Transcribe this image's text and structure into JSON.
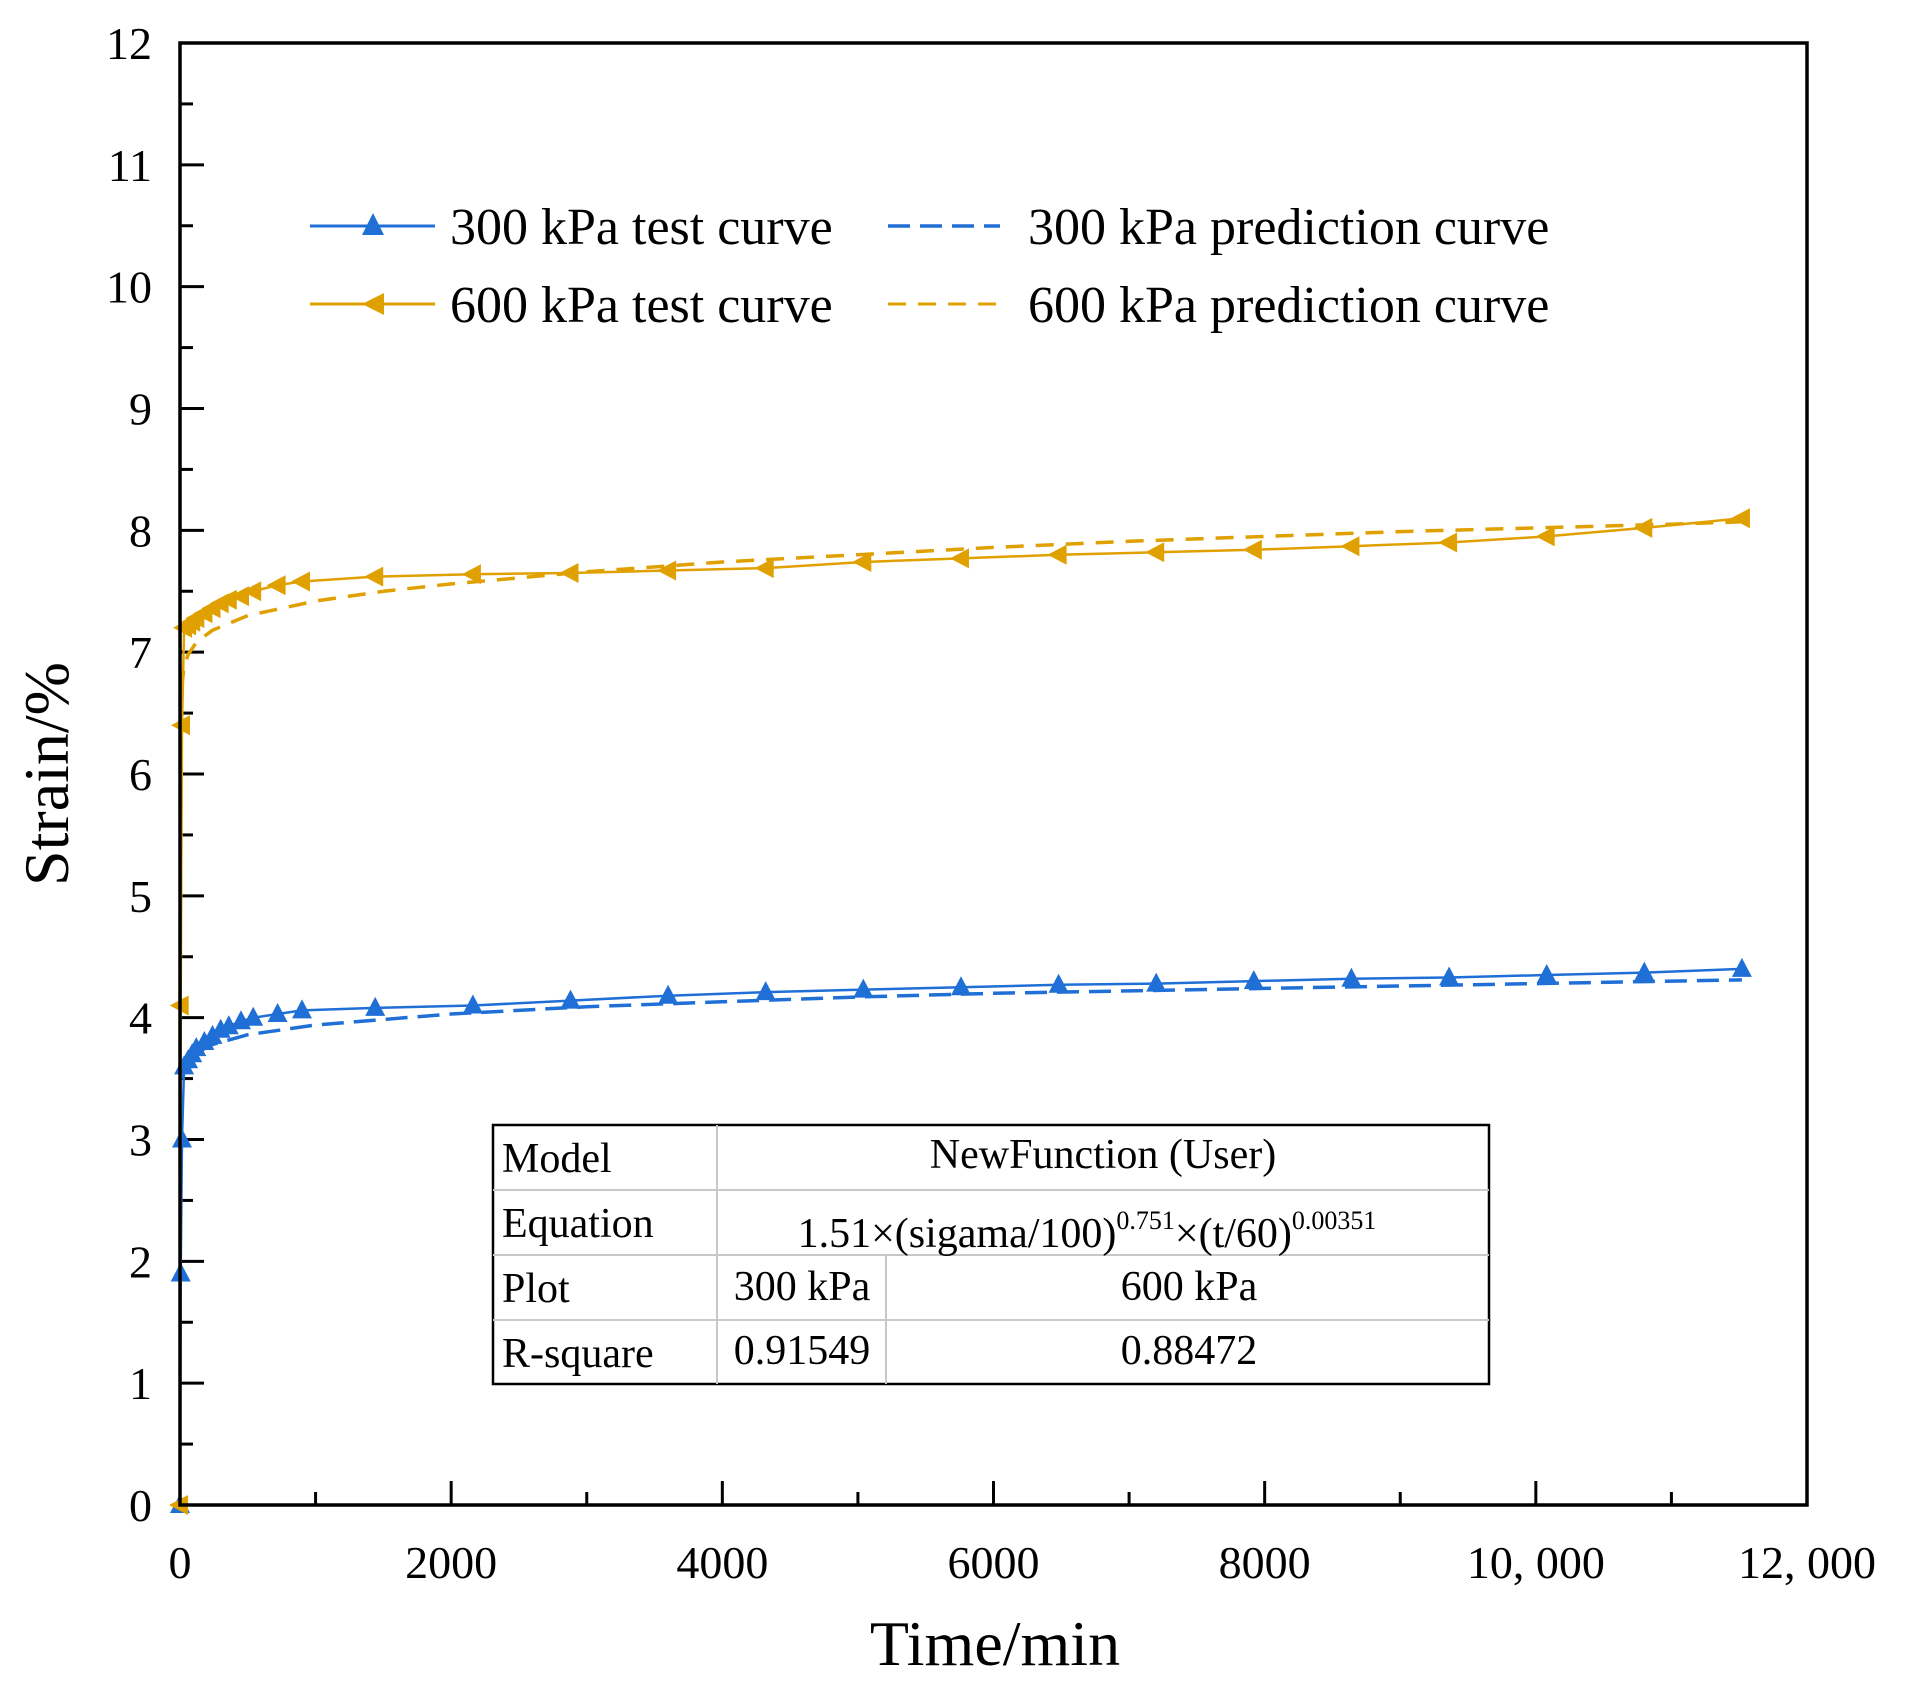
{
  "chart_data": {
    "type": "line",
    "xlabel": "Time/min",
    "ylabel": "Strain/%",
    "xlim": [
      0,
      12000
    ],
    "ylim": [
      0,
      12
    ],
    "x_ticks": [
      0,
      2000,
      4000,
      6000,
      8000,
      10000,
      12000
    ],
    "x_tick_labels": [
      "0",
      "2000",
      "4000",
      "6000",
      "8000",
      "10, 000",
      "12, 000"
    ],
    "y_ticks": [
      0,
      1,
      2,
      3,
      4,
      5,
      6,
      7,
      8,
      9,
      10,
      11,
      12
    ],
    "y_tick_labels": [
      "0",
      "1",
      "2",
      "3",
      "4",
      "5",
      "6",
      "7",
      "8",
      "9",
      "10",
      "11",
      "12"
    ],
    "grid": false,
    "legend_position": "top",
    "series": [
      {
        "name": "300 kPa test curve",
        "style": "solid",
        "marker": "triangle-up",
        "color": "#1f6fd6",
        "x": [
          0,
          5,
          15,
          30,
          60,
          90,
          120,
          180,
          240,
          300,
          360,
          450,
          540,
          720,
          900,
          1440,
          2160,
          2880,
          3600,
          4320,
          5040,
          5760,
          6480,
          7200,
          7920,
          8640,
          9360,
          10080,
          10800,
          11520
        ],
        "y": [
          0,
          1.9,
          3.0,
          3.6,
          3.65,
          3.7,
          3.75,
          3.8,
          3.85,
          3.9,
          3.93,
          3.97,
          4.0,
          4.03,
          4.06,
          4.08,
          4.1,
          4.14,
          4.18,
          4.21,
          4.23,
          4.25,
          4.27,
          4.28,
          4.3,
          4.32,
          4.33,
          4.35,
          4.37,
          4.4
        ]
      },
      {
        "name": "300 kPa prediction curve",
        "style": "dashed",
        "color": "#1f6fd6",
        "x": [
          10,
          30,
          60,
          120,
          240,
          500,
          1000,
          2000,
          3000,
          4000,
          5000,
          6000,
          7000,
          8000,
          9000,
          10000,
          11000,
          11520
        ],
        "y": [
          3.5,
          3.58,
          3.64,
          3.71,
          3.78,
          3.86,
          3.94,
          4.03,
          4.09,
          4.13,
          4.17,
          4.2,
          4.22,
          4.24,
          4.26,
          4.28,
          4.3,
          4.31
        ]
      },
      {
        "name": "600 kPa test curve",
        "style": "solid",
        "marker": "triangle-left",
        "color": "#e0a000",
        "x": [
          0,
          5,
          15,
          30,
          60,
          90,
          120,
          180,
          240,
          300,
          360,
          450,
          540,
          720,
          900,
          1440,
          2160,
          2880,
          3600,
          4320,
          5040,
          5760,
          6480,
          7200,
          7920,
          8640,
          9360,
          10080,
          10800,
          11520
        ],
        "y": [
          0,
          4.1,
          6.4,
          7.2,
          7.22,
          7.25,
          7.28,
          7.32,
          7.36,
          7.4,
          7.43,
          7.46,
          7.5,
          7.55,
          7.58,
          7.62,
          7.64,
          7.65,
          7.67,
          7.69,
          7.74,
          7.77,
          7.8,
          7.82,
          7.84,
          7.87,
          7.9,
          7.95,
          8.02,
          8.1
        ]
      },
      {
        "name": "600 kPa prediction curve",
        "style": "dashed",
        "color": "#e0a000",
        "x": [
          10,
          30,
          60,
          120,
          240,
          500,
          1000,
          1500,
          2000,
          3000,
          4000,
          5000,
          6000,
          7000,
          8000,
          9000,
          10000,
          11000,
          11520
        ],
        "y": [
          6.7,
          6.88,
          6.98,
          7.08,
          7.18,
          7.3,
          7.42,
          7.5,
          7.56,
          7.66,
          7.74,
          7.8,
          7.86,
          7.91,
          7.95,
          7.99,
          8.02,
          8.05,
          8.07
        ]
      }
    ]
  },
  "fit_table": {
    "row1_label": "Model",
    "row1_value": "NewFunction (User)",
    "row2_label": "Equation",
    "eq_part1": "1.51×(sigama/100)",
    "eq_exp1": "0.751",
    "eq_part2": "×(t/60)",
    "eq_exp2": "0.00351",
    "row3_label": "Plot",
    "row3_col1": "300 kPa",
    "row3_col2": "600 kPa",
    "row4_label": "R-square",
    "row4_col1": "0.91549",
    "row4_col2": "0.88472"
  }
}
